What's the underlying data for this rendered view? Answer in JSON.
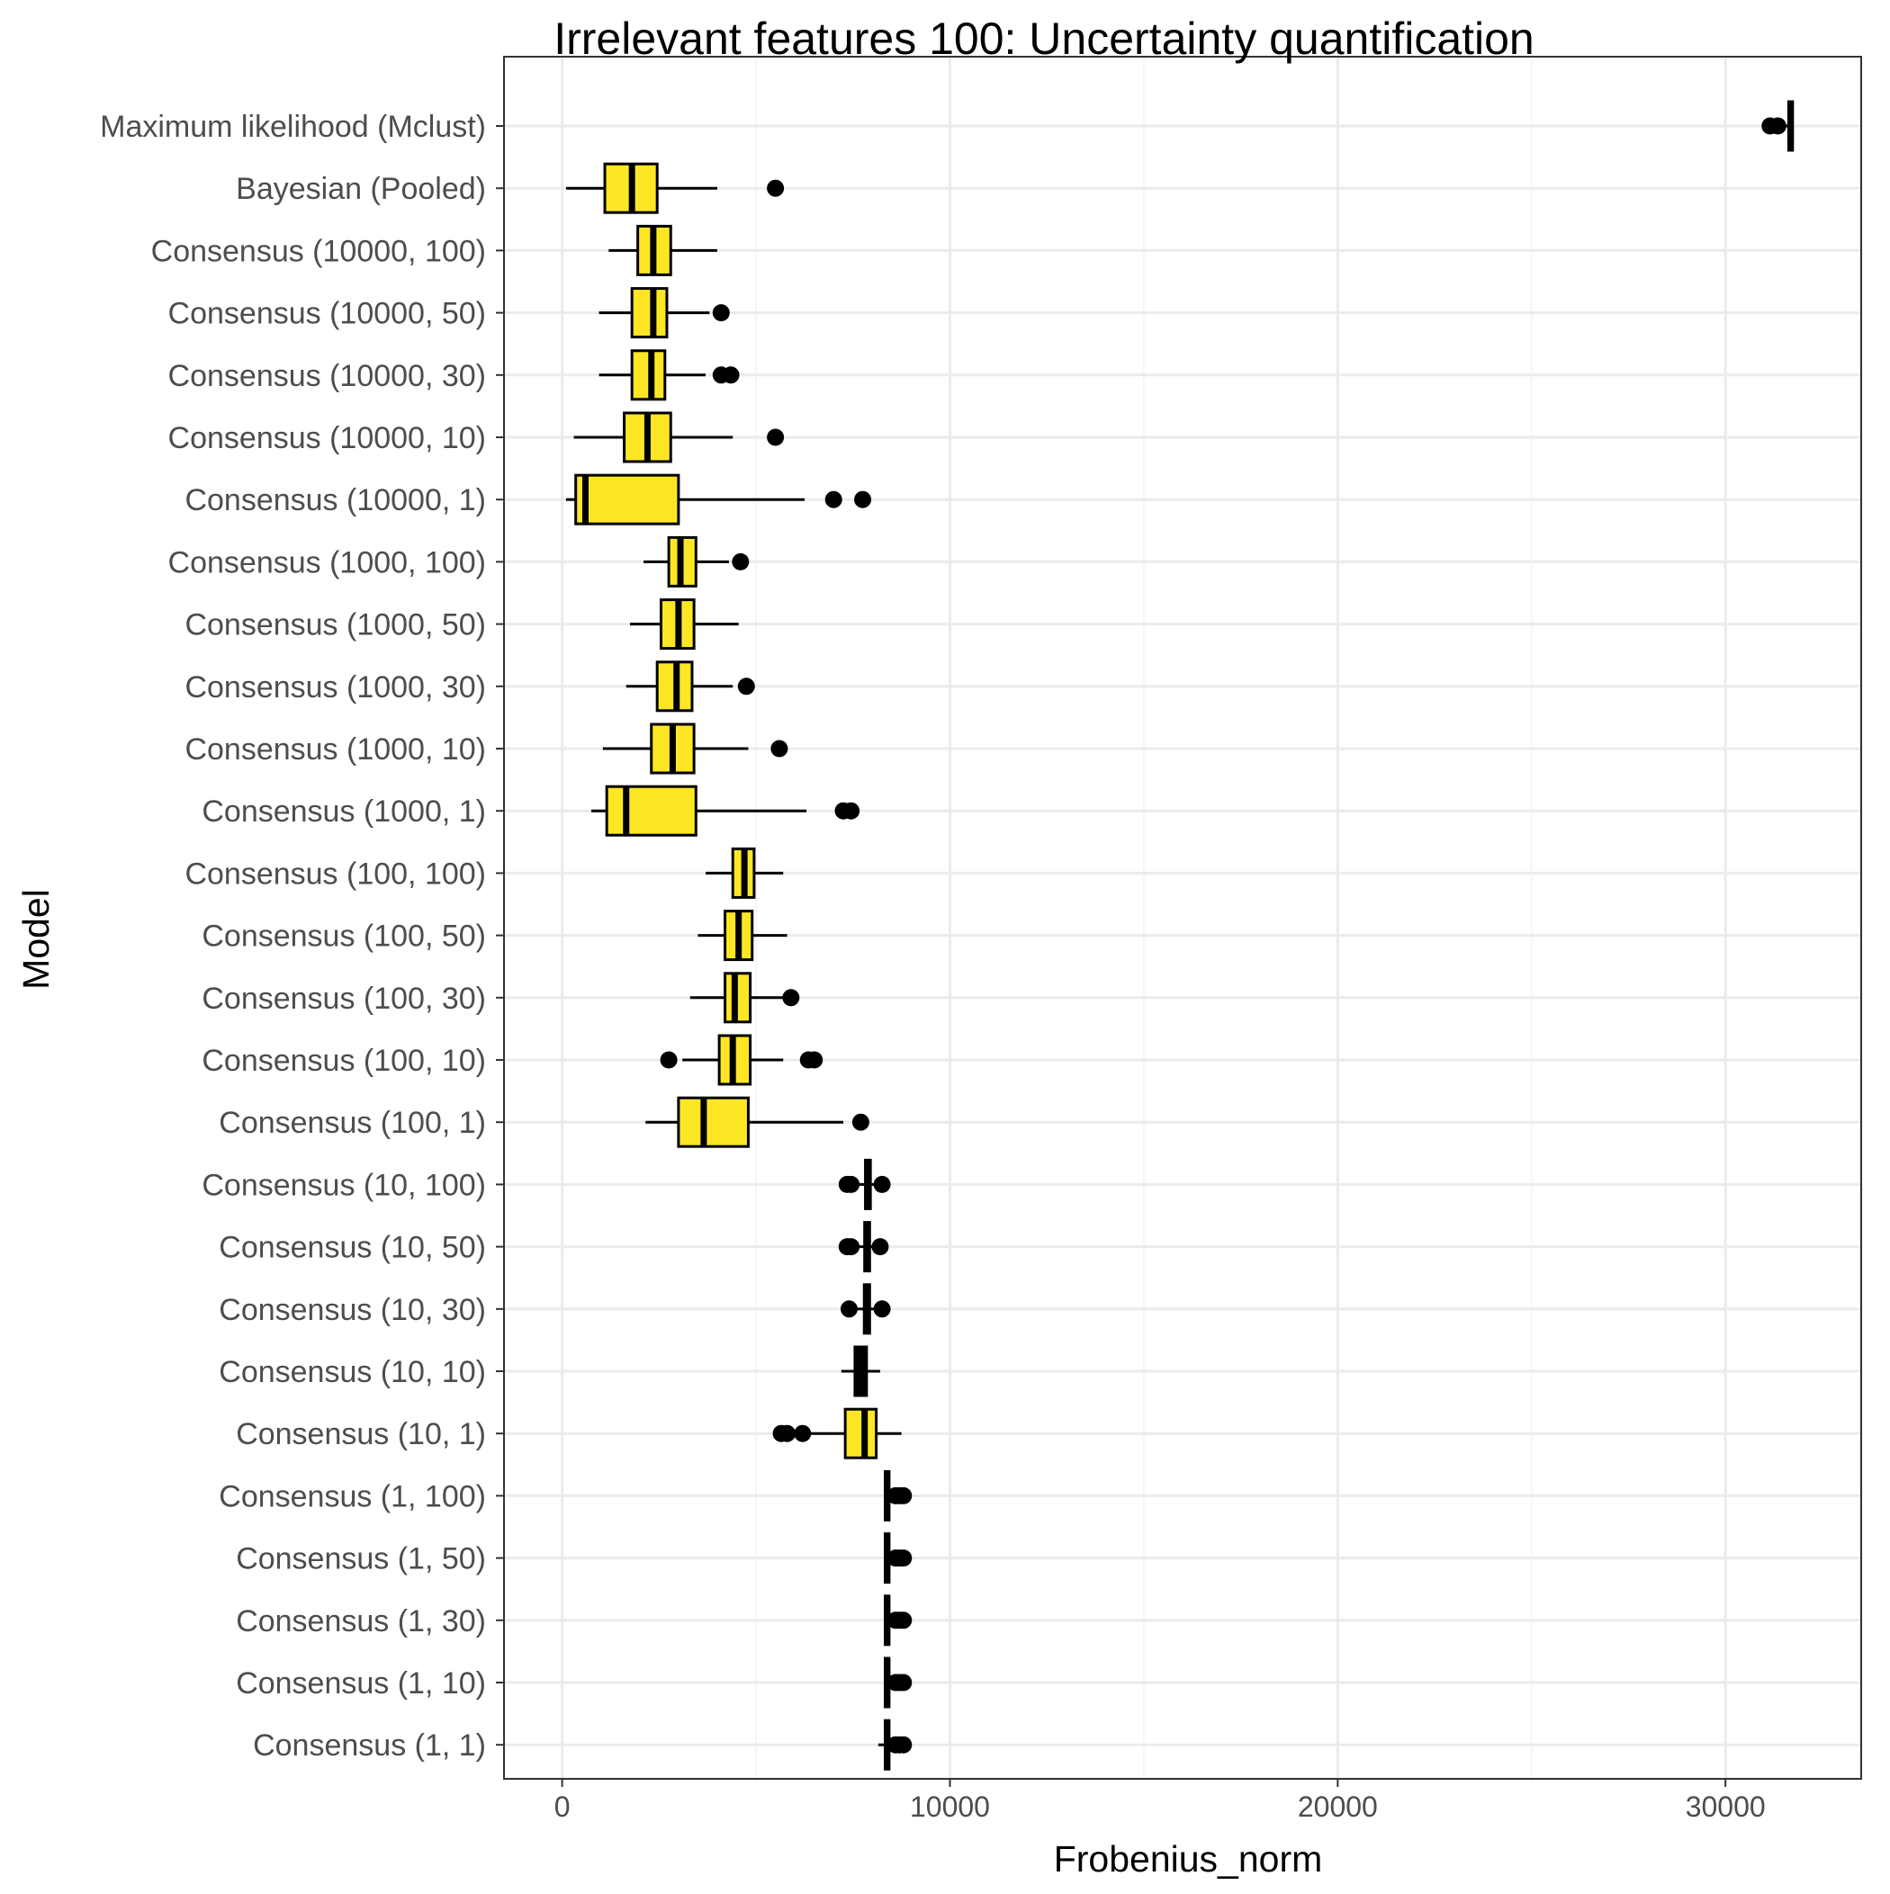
{
  "chart_data": {
    "type": "boxplot",
    "orientation": "horizontal",
    "title": "Irrelevant features 100: Uncertainty quantification",
    "xlabel": "Frobenius_norm",
    "ylabel": "Model",
    "xlim": [
      -1500,
      33500
    ],
    "x_ticks": [
      0,
      10000,
      20000,
      30000
    ],
    "x_tick_labels": [
      "0",
      "10000",
      "20000",
      "30000"
    ],
    "grid": true,
    "legend": "none",
    "colors": {
      "box_fill": "#FDE725",
      "box_fill_dark": "#000000",
      "panel_grid_major": "#ebebeb",
      "panel_grid_minor": "#f5f5f5",
      "panel_border": "#333333"
    },
    "series": [
      {
        "name": "Maximum likelihood (Mclust)",
        "fill": "dark",
        "whisker_low": 31300,
        "q1": 31630,
        "median": 31680,
        "q3": 31730,
        "whisker_high": 31750,
        "outliers": [
          31150,
          31350
        ]
      },
      {
        "name": "Bayesian (Pooled)",
        "fill": "yellow",
        "whisker_low": 100,
        "q1": 1100,
        "median": 1800,
        "q3": 2450,
        "whisker_high": 4000,
        "outliers": [
          5500
        ]
      },
      {
        "name": "Consensus (10000, 100)",
        "fill": "yellow",
        "whisker_low": 1200,
        "q1": 1950,
        "median": 2350,
        "q3": 2800,
        "whisker_high": 4000,
        "outliers": []
      },
      {
        "name": "Consensus (10000, 50)",
        "fill": "yellow",
        "whisker_low": 950,
        "q1": 1800,
        "median": 2350,
        "q3": 2700,
        "whisker_high": 3800,
        "outliers": [
          4100
        ]
      },
      {
        "name": "Consensus (10000, 30)",
        "fill": "yellow",
        "whisker_low": 950,
        "q1": 1800,
        "median": 2300,
        "q3": 2650,
        "whisker_high": 3700,
        "outliers": [
          4100,
          4350
        ]
      },
      {
        "name": "Consensus (10000, 10)",
        "fill": "yellow",
        "whisker_low": 300,
        "q1": 1600,
        "median": 2200,
        "q3": 2800,
        "whisker_high": 4400,
        "outliers": [
          5500
        ]
      },
      {
        "name": "Consensus (10000, 1)",
        "fill": "yellow",
        "whisker_low": 100,
        "q1": 350,
        "median": 600,
        "q3": 3000,
        "whisker_high": 6250,
        "outliers": [
          7000,
          7750
        ]
      },
      {
        "name": "Consensus (1000, 100)",
        "fill": "yellow",
        "whisker_low": 2100,
        "q1": 2750,
        "median": 3050,
        "q3": 3450,
        "whisker_high": 4300,
        "outliers": [
          4600
        ]
      },
      {
        "name": "Consensus (1000, 50)",
        "fill": "yellow",
        "whisker_low": 1750,
        "q1": 2550,
        "median": 3000,
        "q3": 3400,
        "whisker_high": 4550,
        "outliers": []
      },
      {
        "name": "Consensus (1000, 30)",
        "fill": "yellow",
        "whisker_low": 1650,
        "q1": 2450,
        "median": 2950,
        "q3": 3350,
        "whisker_high": 4400,
        "outliers": [
          4750
        ]
      },
      {
        "name": "Consensus (1000, 10)",
        "fill": "yellow",
        "whisker_low": 1050,
        "q1": 2300,
        "median": 2850,
        "q3": 3400,
        "whisker_high": 4800,
        "outliers": [
          5600
        ]
      },
      {
        "name": "Consensus (1000, 1)",
        "fill": "yellow",
        "whisker_low": 750,
        "q1": 1150,
        "median": 1650,
        "q3": 3450,
        "whisker_high": 6300,
        "outliers": [
          7250,
          7450
        ]
      },
      {
        "name": "Consensus (100, 100)",
        "fill": "yellow",
        "whisker_low": 3700,
        "q1": 4400,
        "median": 4700,
        "q3": 4950,
        "whisker_high": 5700,
        "outliers": []
      },
      {
        "name": "Consensus (100, 50)",
        "fill": "yellow",
        "whisker_low": 3500,
        "q1": 4200,
        "median": 4550,
        "q3": 4900,
        "whisker_high": 5800,
        "outliers": []
      },
      {
        "name": "Consensus (100, 30)",
        "fill": "yellow",
        "whisker_low": 3300,
        "q1": 4200,
        "median": 4450,
        "q3": 4850,
        "whisker_high": 5700,
        "outliers": [
          5900
        ]
      },
      {
        "name": "Consensus (100, 10)",
        "fill": "yellow",
        "whisker_low": 3100,
        "q1": 4050,
        "median": 4400,
        "q3": 4850,
        "whisker_high": 5700,
        "outliers": [
          2750,
          6350,
          6500
        ]
      },
      {
        "name": "Consensus (100, 1)",
        "fill": "yellow",
        "whisker_low": 2150,
        "q1": 3000,
        "median": 3650,
        "q3": 4800,
        "whisker_high": 7250,
        "outliers": [
          7700
        ]
      },
      {
        "name": "Consensus (10, 100)",
        "fill": "dark",
        "whisker_low": 7600,
        "q1": 7820,
        "median": 7880,
        "q3": 7950,
        "whisker_high": 8050,
        "outliers": [
          7350,
          7450,
          8250
        ]
      },
      {
        "name": "Consensus (10, 50)",
        "fill": "dark",
        "whisker_low": 7600,
        "q1": 7800,
        "median": 7860,
        "q3": 7930,
        "whisker_high": 8050,
        "outliers": [
          7350,
          7450,
          8200
        ]
      },
      {
        "name": "Consensus (10, 30)",
        "fill": "dark",
        "whisker_low": 7600,
        "q1": 7790,
        "median": 7850,
        "q3": 7930,
        "whisker_high": 8050,
        "outliers": [
          7400,
          8250
        ]
      },
      {
        "name": "Consensus (10, 10)",
        "fill": "dark",
        "whisker_low": 7200,
        "q1": 7550,
        "median": 7700,
        "q3": 7850,
        "whisker_high": 8200,
        "outliers": []
      },
      {
        "name": "Consensus (10, 1)",
        "fill": "yellow",
        "whisker_low": 6350,
        "q1": 7300,
        "median": 7800,
        "q3": 8100,
        "whisker_high": 8750,
        "outliers": [
          5650,
          5800,
          6200
        ]
      },
      {
        "name": "Consensus (1, 100)",
        "fill": "dark",
        "whisker_low": 8300,
        "q1": 8330,
        "median": 8380,
        "q3": 8430,
        "whisker_high": 8500,
        "outliers": [
          8600,
          8700,
          8800
        ]
      },
      {
        "name": "Consensus (1, 50)",
        "fill": "dark",
        "whisker_low": 8300,
        "q1": 8330,
        "median": 8380,
        "q3": 8430,
        "whisker_high": 8500,
        "outliers": [
          8600,
          8700,
          8800
        ]
      },
      {
        "name": "Consensus (1, 30)",
        "fill": "dark",
        "whisker_low": 8300,
        "q1": 8330,
        "median": 8380,
        "q3": 8430,
        "whisker_high": 8500,
        "outliers": [
          8600,
          8700,
          8800
        ]
      },
      {
        "name": "Consensus (1, 10)",
        "fill": "dark",
        "whisker_low": 8300,
        "q1": 8330,
        "median": 8380,
        "q3": 8430,
        "whisker_high": 8500,
        "outliers": [
          8600,
          8700,
          8800
        ]
      },
      {
        "name": "Consensus (1, 1)",
        "fill": "dark",
        "whisker_low": 8150,
        "q1": 8330,
        "median": 8380,
        "q3": 8430,
        "whisker_high": 8500,
        "outliers": [
          8600,
          8700,
          8800
        ]
      }
    ]
  }
}
